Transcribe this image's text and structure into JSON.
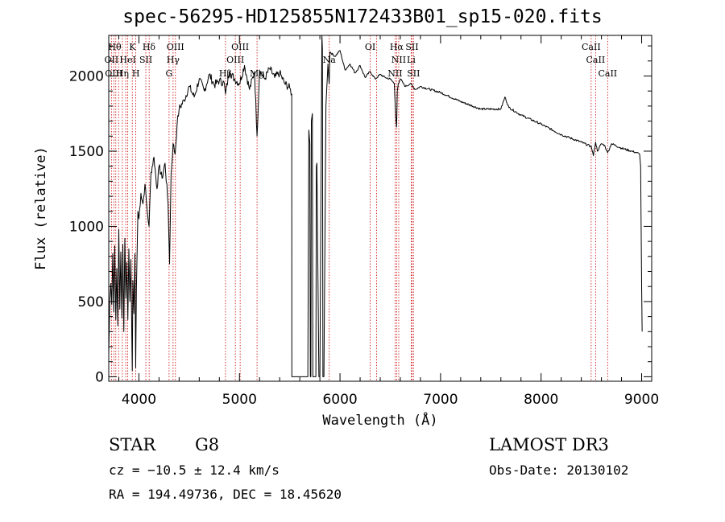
{
  "title": "spec-56295-HD125855N172433B01_sp15-020.fits",
  "info": {
    "class_label": "STAR",
    "subclass": "G8",
    "survey": "LAMOST DR3",
    "redshift": "cz = −10.5 ± 12.4 km/s",
    "obs_date": "Obs-Date: 20130102",
    "coords": "RA = 194.49736, DEC =  18.45620"
  },
  "chart_data": {
    "type": "line",
    "xlabel": "Wavelength (Å)",
    "ylabel": "Flux (relative)",
    "xlim": [
      3700,
      9100
    ],
    "ylim": [
      -30,
      2270
    ],
    "xticks": [
      4000,
      5000,
      6000,
      7000,
      8000,
      9000
    ],
    "yticks": [
      0,
      500,
      1000,
      1500,
      2000
    ],
    "series": [
      {
        "x": [
          3700,
          3710,
          3720,
          3730,
          3740,
          3750,
          3760,
          3770,
          3780,
          3790,
          3800,
          3810,
          3820,
          3830,
          3840,
          3850,
          3860,
          3870,
          3880,
          3890,
          3900,
          3910,
          3920,
          3930,
          3934,
          3940,
          3950,
          3960,
          3968,
          3975,
          3990,
          4000,
          4020,
          4040,
          4060,
          4080,
          4101,
          4120,
          4150,
          4180,
          4200,
          4230,
          4260,
          4290,
          4305,
          4320,
          4340,
          4360,
          4380,
          4400,
          4450,
          4500,
          4550,
          4600,
          4650,
          4700,
          4750,
          4800,
          4850,
          4861,
          4900,
          4950,
          5000,
          5050,
          5100,
          5150,
          5175,
          5200,
          5250,
          5300,
          5350,
          5400,
          5450,
          5500,
          5520,
          5521,
          5525,
          5530,
          5680,
          5690,
          5700,
          5705,
          5710,
          5715,
          5725,
          5730,
          5760,
          5765,
          5770,
          5790,
          5800,
          5820,
          5825,
          5830,
          5840,
          5860,
          5880,
          5892,
          5900,
          5950,
          6000,
          6050,
          6100,
          6150,
          6200,
          6250,
          6300,
          6350,
          6400,
          6450,
          6500,
          6540,
          6555,
          6563,
          6570,
          6580,
          6600,
          6650,
          6700,
          6750,
          6800,
          7000,
          7200,
          7400,
          7600,
          7640,
          7680,
          7800,
          8000,
          8200,
          8400,
          8500,
          8520,
          8542,
          8560,
          8600,
          8630,
          8662,
          8700,
          8800,
          8900,
          8950,
          8980,
          8990,
          9000,
          9005
        ],
        "y": [
          150,
          500,
          620,
          480,
          820,
          430,
          870,
          380,
          720,
          340,
          980,
          450,
          830,
          390,
          880,
          300,
          920,
          520,
          760,
          380,
          850,
          500,
          780,
          250,
          40,
          640,
          420,
          820,
          60,
          580,
          1100,
          1050,
          1220,
          1150,
          1280,
          1120,
          1000,
          1360,
          1460,
          1250,
          1400,
          1320,
          1420,
          1150,
          750,
          1350,
          1550,
          1480,
          1680,
          1780,
          1840,
          1930,
          1860,
          1980,
          1900,
          2010,
          1940,
          1970,
          1950,
          1880,
          2030,
          1980,
          1950,
          2070,
          1910,
          2030,
          1600,
          2040,
          1980,
          2050,
          1990,
          2020,
          1950,
          1920,
          1880,
          0,
          0,
          0,
          0,
          1640,
          1550,
          0,
          0,
          1700,
          1750,
          0,
          0,
          1400,
          1420,
          0,
          0,
          2270,
          2180,
          0,
          0,
          1800,
          2080,
          1950,
          2160,
          2130,
          2170,
          2040,
          2080,
          2020,
          2070,
          1990,
          2030,
          1980,
          2010,
          1990,
          1980,
          1950,
          1720,
          1660,
          1900,
          1950,
          1980,
          1930,
          1950,
          1910,
          1930,
          1890,
          1830,
          1780,
          1780,
          1860,
          1790,
          1740,
          1680,
          1610,
          1560,
          1530,
          1470,
          1560,
          1500,
          1550,
          1540,
          1490,
          1550,
          1520,
          1500,
          1490,
          1480,
          1400,
          600,
          300
        ]
      }
    ],
    "lines_top": [
      "Hθ",
      "K",
      "Hδ",
      "OIII",
      "OIII",
      "OI",
      "Hα",
      "SII",
      "CaII"
    ],
    "lines_mid": [
      "OII",
      "HeI",
      "SII",
      "Hγ",
      "OIII",
      "Na",
      "NII",
      "Li",
      "CaII"
    ],
    "lines_bot": [
      "OIII",
      "Hη",
      "H",
      "G",
      "Hβ",
      "Mg",
      "NII",
      "SII",
      "CaII"
    ],
    "line_x": [
      3727,
      3750,
      3770,
      3798,
      3835,
      3869,
      3889,
      3934,
      3968,
      4069,
      4102,
      4300,
      4340,
      4363,
      4861,
      4959,
      5007,
      5175,
      5893,
      6300,
      6364,
      6548,
      6563,
      6584,
      6708,
      6716,
      6731,
      8498,
      8542,
      8662
    ],
    "grid": false,
    "line_color": "#000000",
    "marker_color": "#cc0000"
  }
}
